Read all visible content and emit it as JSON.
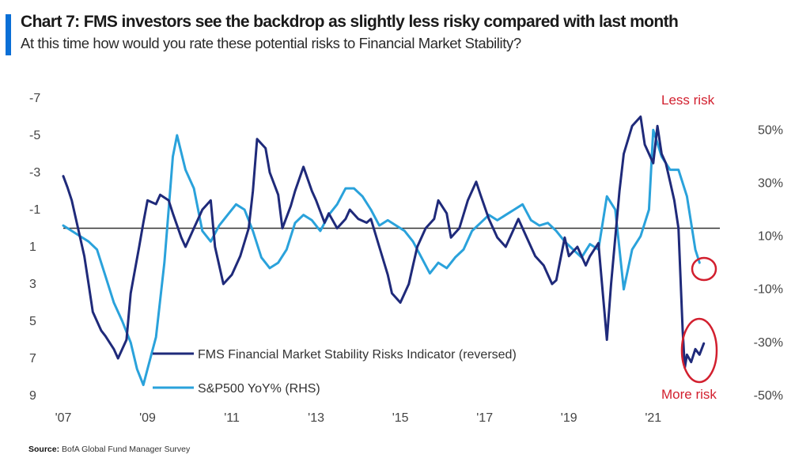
{
  "title": "Chart 7: FMS investors see the backdrop as slightly less risky compared with last month",
  "subtitle": "At this time how would you rate these potential risks to Financial Market Stability?",
  "source_label": "Source:",
  "source_text": "BofA Global Fund Manager Survey",
  "colors": {
    "accent": "#0a6fd6",
    "fms": "#1f2a7a",
    "spx": "#2aa2db",
    "annotation": "#d21f2e"
  },
  "chart_data": {
    "type": "line",
    "title": "Chart 7: FMS investors see the backdrop as slightly less risky compared with last month",
    "x_ticks": [
      "'07",
      "'09",
      "'11",
      "'13",
      "'15",
      "'17",
      "'19",
      "'21"
    ],
    "x_range": [
      2007,
      2022.3
    ],
    "y_left": {
      "ticks": [
        -7,
        -5,
        -3,
        -1,
        1,
        3,
        5,
        7,
        9
      ],
      "range": [
        -7,
        9
      ],
      "reversed": true
    },
    "y_right": {
      "ticks": [
        "50%",
        "30%",
        "10%",
        "-10%",
        "-30%",
        "-50%"
      ],
      "tick_values": [
        50,
        30,
        10,
        -10,
        -30,
        -50
      ],
      "range": [
        -50,
        62
      ]
    },
    "reference_line": {
      "axis": "left",
      "value": 0
    },
    "annotations": {
      "top": "Less risk",
      "bottom": "More risk"
    },
    "legend_position": "bottom-left inside",
    "series": [
      {
        "name": "FMS Financial Market Stability Risks Indicator (reversed)",
        "axis": "left",
        "x": [
          2007.0,
          2007.1,
          2007.2,
          2007.3,
          2007.4,
          2007.5,
          2007.6,
          2007.7,
          2007.9,
          2008.0,
          2008.2,
          2008.3,
          2008.5,
          2008.6,
          2008.8,
          2008.9,
          2009.0,
          2009.2,
          2009.3,
          2009.5,
          2009.6,
          2009.8,
          2009.9,
          2010.1,
          2010.2,
          2010.3,
          2010.5,
          2010.6,
          2010.8,
          2011.0,
          2011.2,
          2011.4,
          2011.5,
          2011.6,
          2011.8,
          2011.9,
          2012.1,
          2012.2,
          2012.4,
          2012.5,
          2012.7,
          2012.9,
          2013.0,
          2013.2,
          2013.3,
          2013.5,
          2013.7,
          2013.8,
          2014.0,
          2014.2,
          2014.3,
          2014.5,
          2014.7,
          2014.8,
          2015.0,
          2015.2,
          2015.3,
          2015.4,
          2015.6,
          2015.8,
          2015.9,
          2016.1,
          2016.2,
          2016.4,
          2016.6,
          2016.8,
          2016.9,
          2017.1,
          2017.3,
          2017.5,
          2017.7,
          2017.8,
          2018.0,
          2018.2,
          2018.4,
          2018.6,
          2018.7,
          2018.9,
          2019.0,
          2019.2,
          2019.4,
          2019.5,
          2019.7,
          2019.9,
          2020.0,
          2020.2,
          2020.3,
          2020.5,
          2020.7,
          2020.8,
          2021.0,
          2021.1,
          2021.2,
          2021.3,
          2021.4,
          2021.5,
          2021.6,
          2021.7,
          2021.75,
          2021.8,
          2021.9,
          2022.0,
          2022.1,
          2022.2
        ],
        "y": [
          -2.8,
          -2.2,
          -1.5,
          -0.5,
          0.5,
          1.5,
          3.0,
          4.5,
          5.5,
          5.8,
          6.5,
          7.0,
          6.0,
          3.5,
          1.0,
          -0.3,
          -1.5,
          -1.3,
          -1.8,
          -1.5,
          -0.8,
          0.5,
          1.0,
          0.0,
          -0.5,
          -1.0,
          -1.5,
          1.0,
          3.0,
          2.5,
          1.5,
          0.0,
          -2.0,
          -4.8,
          -4.3,
          -3.0,
          -1.8,
          0.0,
          -1.2,
          -2.0,
          -3.3,
          -2.0,
          -1.5,
          -0.3,
          -0.8,
          0.0,
          -0.5,
          -1.0,
          -0.5,
          -0.3,
          -0.5,
          1.0,
          2.5,
          3.5,
          4.0,
          3.0,
          2.0,
          1.0,
          0.0,
          -0.5,
          -1.5,
          -0.8,
          0.5,
          0.0,
          -1.5,
          -2.5,
          -1.8,
          -0.5,
          0.5,
          1.0,
          0.0,
          -0.5,
          0.5,
          1.5,
          2.0,
          3.0,
          2.8,
          0.5,
          1.5,
          1.0,
          2.0,
          1.5,
          0.8,
          6.0,
          3.0,
          -2.0,
          -4.0,
          -5.5,
          -6.0,
          -4.5,
          -3.5,
          -5.5,
          -4.0,
          -3.5,
          -2.5,
          -1.5,
          0.0,
          5.5,
          7.5,
          6.8,
          7.2,
          6.5,
          6.8,
          6.2
        ]
      },
      {
        "name": "S&P500 YoY% (RHS)",
        "axis": "right",
        "x": [
          2007.0,
          2007.2,
          2007.4,
          2007.6,
          2007.8,
          2008.0,
          2008.2,
          2008.4,
          2008.6,
          2008.75,
          2008.9,
          2009.0,
          2009.2,
          2009.4,
          2009.5,
          2009.6,
          2009.7,
          2009.9,
          2010.1,
          2010.3,
          2010.5,
          2010.7,
          2010.9,
          2011.1,
          2011.3,
          2011.5,
          2011.7,
          2011.9,
          2012.1,
          2012.3,
          2012.5,
          2012.7,
          2012.9,
          2013.1,
          2013.3,
          2013.5,
          2013.7,
          2013.9,
          2014.1,
          2014.3,
          2014.5,
          2014.7,
          2014.9,
          2015.1,
          2015.3,
          2015.5,
          2015.7,
          2015.9,
          2016.1,
          2016.3,
          2016.5,
          2016.7,
          2016.9,
          2017.1,
          2017.3,
          2017.5,
          2017.7,
          2017.9,
          2018.1,
          2018.3,
          2018.5,
          2018.7,
          2018.9,
          2019.1,
          2019.3,
          2019.5,
          2019.7,
          2019.9,
          2020.1,
          2020.3,
          2020.5,
          2020.7,
          2020.9,
          2021.0,
          2021.2,
          2021.4,
          2021.6,
          2021.8,
          2022.0,
          2022.1
        ],
        "y": [
          14,
          12,
          10,
          8,
          5,
          -5,
          -15,
          -22,
          -30,
          -40,
          -46,
          -40,
          -28,
          0,
          20,
          40,
          48,
          35,
          28,
          12,
          8,
          14,
          18,
          22,
          20,
          12,
          2,
          -2,
          0,
          5,
          15,
          18,
          16,
          12,
          18,
          22,
          28,
          28,
          25,
          20,
          14,
          16,
          14,
          12,
          8,
          2,
          -4,
          0,
          -2,
          2,
          5,
          12,
          15,
          18,
          16,
          18,
          20,
          22,
          16,
          14,
          15,
          12,
          8,
          5,
          2,
          7,
          5,
          25,
          20,
          -10,
          5,
          10,
          20,
          50,
          40,
          35,
          35,
          25,
          5,
          0
        ]
      }
    ]
  }
}
